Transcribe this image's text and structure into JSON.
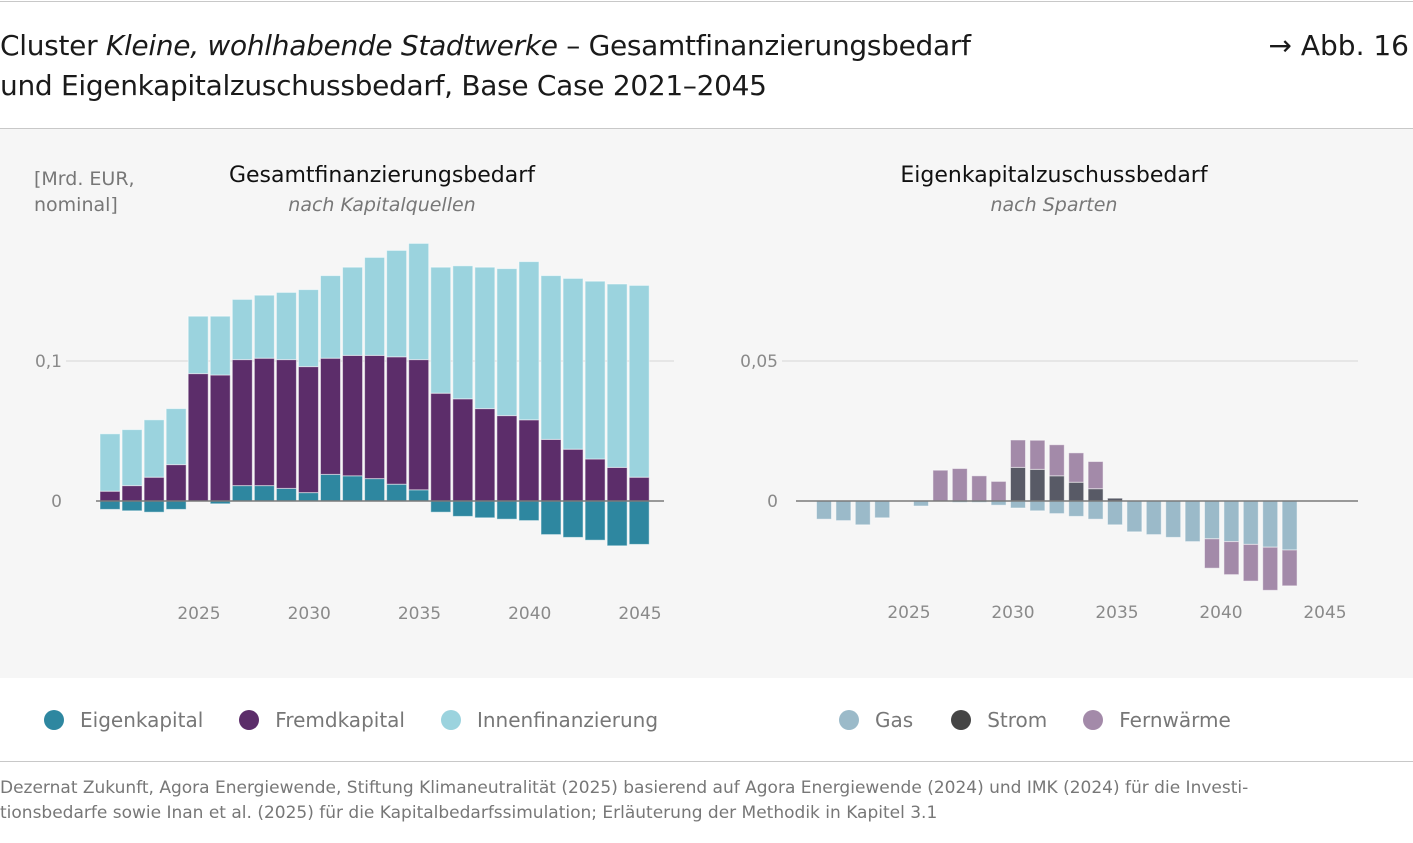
{
  "header": {
    "title_prefix": "Cluster ",
    "title_italic": "Kleine, wohlhabende Stadtwerke",
    "title_suffix": " – Gesamtfinanzierungsbedarf",
    "title_line2": "und Eigenkapitalzuschussbedarf, Base Case 2021–2045",
    "figure_ref": "→ Abb. 16"
  },
  "unit_label_line1": "[Mrd. EUR,",
  "unit_label_line2": "nominal]",
  "chart_data": [
    {
      "type": "bar",
      "stacked": true,
      "title": "Gesamtfinanzierungsbedarf",
      "subtitle": "nach Kapitalquellen",
      "ylabel": "[Mrd. EUR, nominal]",
      "ylim": [
        -0.04,
        0.19
      ],
      "yticks": [
        {
          "value": 0,
          "label": "0"
        },
        {
          "value": 0.1,
          "label": "0,1"
        }
      ],
      "xticks": [
        2025,
        2030,
        2035,
        2040,
        2045
      ],
      "x": [
        2021,
        2022,
        2023,
        2024,
        2025,
        2026,
        2027,
        2028,
        2029,
        2030,
        2031,
        2032,
        2033,
        2034,
        2035,
        2036,
        2037,
        2038,
        2039,
        2040,
        2041,
        2042,
        2043,
        2044,
        2045
      ],
      "series": [
        {
          "name": "Eigenkapital",
          "color": "#2e87a0",
          "values": [
            -0.006,
            -0.007,
            -0.008,
            -0.006,
            0.0,
            -0.002,
            0.011,
            0.011,
            0.009,
            0.006,
            0.019,
            0.018,
            0.016,
            0.012,
            0.008,
            -0.008,
            -0.011,
            -0.012,
            -0.013,
            -0.014,
            -0.024,
            -0.026,
            -0.028,
            -0.032,
            -0.031
          ]
        },
        {
          "name": "Fremdkapital",
          "color": "#5c2d6a",
          "values": [
            0.007,
            0.011,
            0.017,
            0.026,
            0.091,
            0.09,
            0.09,
            0.091,
            0.092,
            0.09,
            0.083,
            0.086,
            0.088,
            0.091,
            0.093,
            0.077,
            0.073,
            0.066,
            0.061,
            0.058,
            0.044,
            0.037,
            0.03,
            0.024,
            0.017
          ]
        },
        {
          "name": "Innenfinanzierung",
          "color": "#9bd3de",
          "values": [
            0.041,
            0.04,
            0.041,
            0.04,
            0.041,
            0.042,
            0.043,
            0.045,
            0.048,
            0.055,
            0.059,
            0.063,
            0.07,
            0.076,
            0.083,
            0.09,
            0.095,
            0.101,
            0.105,
            0.113,
            0.117,
            0.122,
            0.127,
            0.131,
            0.137
          ]
        }
      ]
    },
    {
      "type": "bar",
      "stacked": true,
      "title": "Eigenkapitalzuschussbedarf",
      "subtitle": "nach Sparten",
      "ylim": [
        -0.035,
        0.065
      ],
      "yticks": [
        {
          "value": 0,
          "label": "0"
        },
        {
          "value": 0.05,
          "label": "0,05"
        }
      ],
      "xticks": [
        2025,
        2030,
        2035,
        2040,
        2045
      ],
      "x": [
        2021,
        2022,
        2023,
        2024,
        2025,
        2026,
        2027,
        2028,
        2029,
        2030,
        2031,
        2032,
        2033,
        2034,
        2035,
        2036,
        2037,
        2038,
        2039,
        2040,
        2041,
        2042,
        2043,
        2044,
        2045
      ],
      "series": [
        {
          "name": "Gas",
          "color": "#9bbac9",
          "values": [
            -0.0065,
            -0.007,
            -0.0085,
            -0.006,
            0,
            -0.0018,
            0,
            -0.0005,
            -0.0005,
            -0.0015,
            -0.0025,
            -0.0035,
            -0.0045,
            -0.0055,
            -0.0065,
            -0.0085,
            -0.011,
            -0.012,
            -0.013,
            -0.0145,
            -0.0135,
            -0.0145,
            -0.0155,
            -0.0165,
            -0.0175
          ]
        },
        {
          "name": "Strom",
          "color": "#585a66",
          "values": [
            0,
            0,
            0,
            0,
            0,
            0,
            0,
            0,
            0,
            0,
            0.012,
            0.0113,
            0.009,
            0.0067,
            0.0044,
            0.001,
            0,
            0,
            0,
            0,
            0,
            0,
            0,
            0,
            0
          ]
        },
        {
          "name": "Fernwärme",
          "color": "#a38aa9",
          "values": [
            0,
            0,
            0,
            0,
            0,
            0,
            0.011,
            0.0116,
            0.009,
            0.007,
            0.0098,
            0.0104,
            0.0111,
            0.0105,
            0.0097,
            0,
            0,
            0,
            0,
            0,
            -0.0105,
            -0.0118,
            -0.0131,
            -0.0154,
            -0.0128
          ]
        }
      ]
    }
  ],
  "legend_left": [
    "Eigenkapital",
    "Fremdkapital",
    "Innenfinanzierung"
  ],
  "legend_right": [
    "Gas",
    "Strom",
    "Fernwärme"
  ],
  "source_line1": "Dezernat Zukunft, Agora Energiewende, Stiftung Klimaneutralität (2025) basierend auf Agora Energiewende (2024) und IMK (2024) für die Investi-",
  "source_line2": "tionsbedarfe sowie Inan et al. (2025) für die Kapitalbedarfssimulation; Erläuterung der Methodik in Kapitel 3.1"
}
